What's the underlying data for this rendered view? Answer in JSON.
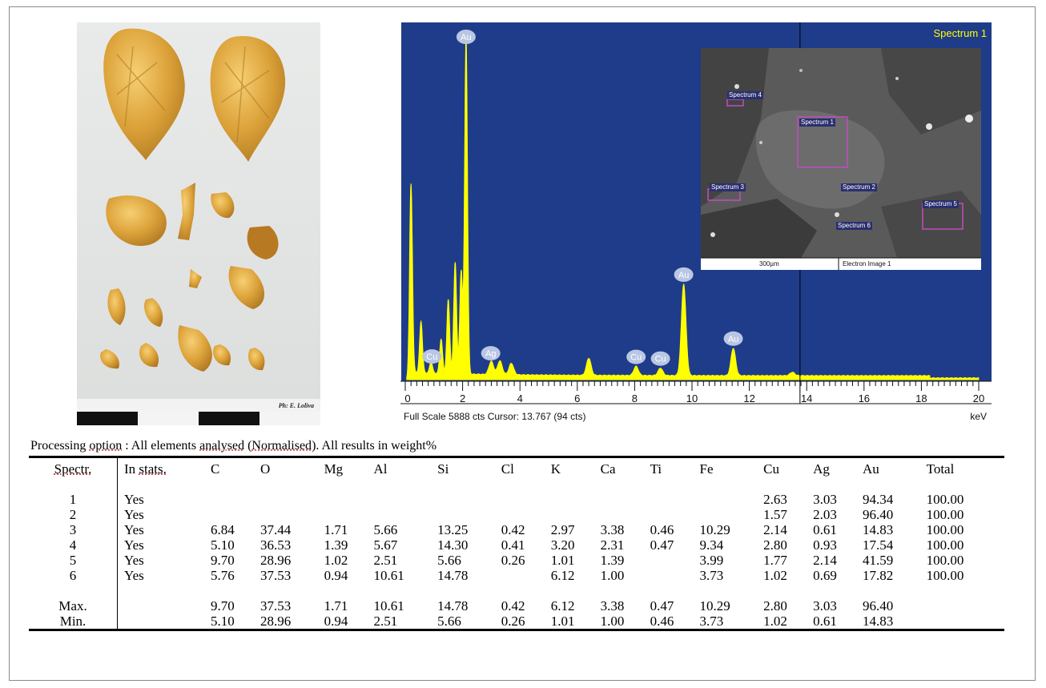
{
  "photo": {
    "credit": "Ph: E. Loliva"
  },
  "spectrum": {
    "label": "Spectrum 1",
    "footer_left": "Full Scale 5888 cts Cursor: 13.767  (94 cts)",
    "footer_unit": "keV",
    "x_ticks": [
      "0",
      "2",
      "4",
      "6",
      "8",
      "10",
      "12",
      "14",
      "16",
      "18",
      "20"
    ],
    "peak_labels": [
      "Au",
      "Cu",
      "Ag",
      "Cu",
      "Cu",
      "Au",
      "Au"
    ],
    "sem": {
      "labels": [
        "Spectrum 4",
        "Spectrum 1",
        "Spectrum 2",
        "Spectrum 3",
        "Spectrum 5",
        "Spectrum 6"
      ],
      "scale_bar": "300µm",
      "image_name": "Electron Image 1"
    },
    "colors": {
      "background": "#1f3c8a",
      "trace": "#ffff00"
    }
  },
  "chart_data": {
    "type": "line",
    "title": "Spectrum 1",
    "xlabel": "keV",
    "ylabel": "",
    "xlim": [
      0,
      20
    ],
    "ylim": [
      0,
      5888
    ],
    "x": [
      0.2,
      0.55,
      0.9,
      1.25,
      1.5,
      1.74,
      1.95,
      2.12,
      3.0,
      3.3,
      3.7,
      6.4,
      8.05,
      8.9,
      9.71,
      11.44,
      13.5
    ],
    "series": [
      {
        "values": [
          3300,
          900,
          200,
          600,
          1300,
          1950,
          1800,
          5888,
          230,
          240,
          200,
          300,
          160,
          130,
          1600,
          480,
          60
        ]
      }
    ],
    "annotations": [
      {
        "text": "Au",
        "x": 2.12
      },
      {
        "text": "Cu",
        "x": 0.93
      },
      {
        "text": "Ag",
        "x": 2.98
      },
      {
        "text": "Cu",
        "x": 8.05
      },
      {
        "text": "Cu",
        "x": 8.9
      },
      {
        "text": "Au",
        "x": 9.71
      },
      {
        "text": "Au",
        "x": 11.44
      }
    ]
  },
  "table": {
    "caption_pre": "Processing ",
    "caption_u1": "option",
    "caption_mid": " : All elements ",
    "caption_u2": "analysed",
    "caption_mid2": " (",
    "caption_u3": "Normalised",
    "caption_post": ").  All results in weight%",
    "headers": [
      "Spectr.",
      "In stats.",
      "C",
      "O",
      "Mg",
      "Al",
      "Si",
      "Cl",
      "K",
      "Ca",
      "Ti",
      "Fe",
      "Cu",
      "Ag",
      "Au",
      "Total"
    ],
    "rows": [
      [
        "1",
        "Yes",
        "",
        "",
        "",
        "",
        "",
        "",
        "",
        "",
        "",
        "",
        "2.63",
        "3.03",
        "94.34",
        "100.00"
      ],
      [
        "2",
        "Yes",
        "",
        "",
        "",
        "",
        "",
        "",
        "",
        "",
        "",
        "",
        "1.57",
        "2.03",
        "96.40",
        "100.00"
      ],
      [
        "3",
        "Yes",
        "6.84",
        "37.44",
        "1.71",
        "5.66",
        "13.25",
        "0.42",
        "2.97",
        "3.38",
        "0.46",
        "10.29",
        "2.14",
        "0.61",
        "14.83",
        "100.00"
      ],
      [
        "4",
        "Yes",
        "5.10",
        "36.53",
        "1.39",
        "5.67",
        "14.30",
        "0.41",
        "3.20",
        "2.31",
        "0.47",
        "9.34",
        "2.80",
        "0.93",
        "17.54",
        "100.00"
      ],
      [
        "5",
        "Yes",
        "9.70",
        "28.96",
        "1.02",
        "2.51",
        "5.66",
        "0.26",
        "1.01",
        "1.39",
        "",
        "3.99",
        "1.77",
        "2.14",
        "41.59",
        "100.00"
      ],
      [
        "6",
        "Yes",
        "5.76",
        "37.53",
        "0.94",
        "10.61",
        "14.78",
        "",
        "6.12",
        "1.00",
        "",
        "3.73",
        "1.02",
        "0.69",
        "17.82",
        "100.00"
      ]
    ],
    "summary": [
      [
        "Max.",
        "",
        "9.70",
        "37.53",
        "1.71",
        "10.61",
        "14.78",
        "0.42",
        "6.12",
        "3.38",
        "0.47",
        "10.29",
        "2.80",
        "3.03",
        "96.40",
        ""
      ],
      [
        "Min.",
        "",
        "5.10",
        "28.96",
        "0.94",
        "2.51",
        "5.66",
        "0.26",
        "1.01",
        "1.00",
        "0.46",
        "3.73",
        "1.02",
        "0.61",
        "14.83",
        ""
      ]
    ]
  }
}
